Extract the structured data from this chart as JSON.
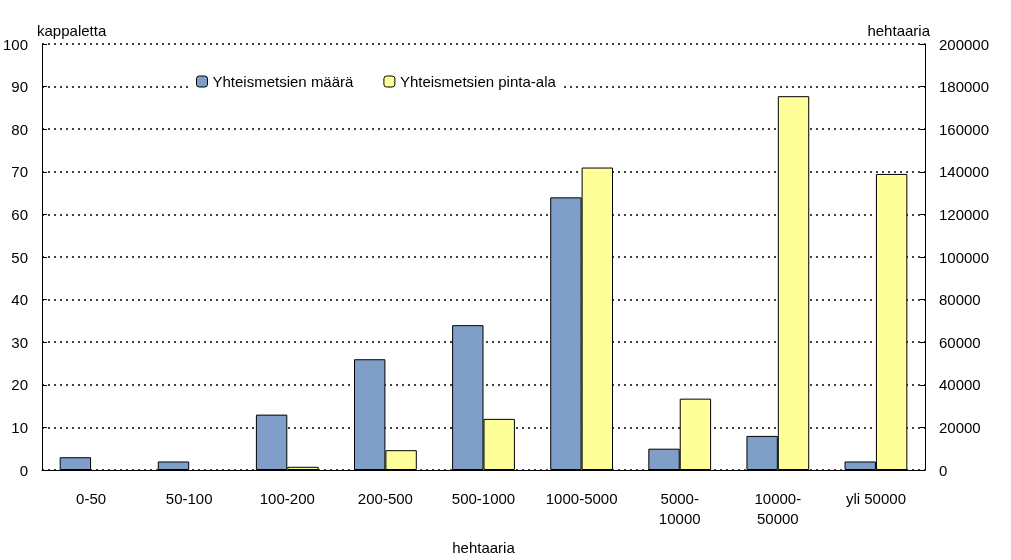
{
  "chart_data": {
    "type": "bar",
    "xlabel": "hehtaaria",
    "ylabel": "kappaletta",
    "y2label": "hehtaaria",
    "categories": [
      "0-50",
      "50-100",
      "100-200",
      "200-500",
      "500-1000",
      "1000-5000",
      "5000-10000",
      "10000-50000",
      "yli 50000"
    ],
    "series": [
      {
        "name": "Yhteismetsien määrä",
        "color": "#7f9fc8",
        "values": [
          3,
          2,
          13,
          26,
          34,
          64,
          5,
          8,
          2
        ]
      },
      {
        "name": "Yhteismetsien pinta-ala",
        "color": "#ffff99",
        "axis": "y2",
        "values": [
          null,
          null,
          1500,
          9300,
          24000,
          142000,
          33500,
          175500,
          139000
        ]
      }
    ],
    "ylim": [
      0,
      100
    ],
    "yticks": [
      0,
      10,
      20,
      30,
      40,
      50,
      60,
      70,
      80,
      90,
      100
    ],
    "y2lim": [
      0,
      200000
    ],
    "y2ticks": [
      0,
      20000,
      40000,
      60000,
      80000,
      100000,
      120000,
      140000,
      160000,
      180000,
      200000
    ],
    "grid": "y",
    "legend": "top"
  }
}
